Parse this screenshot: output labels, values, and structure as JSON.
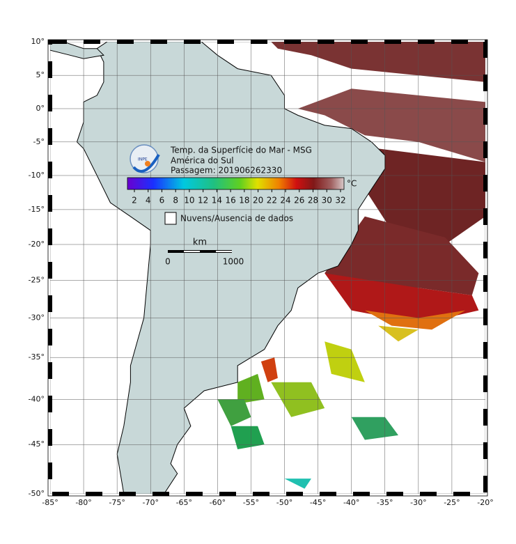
{
  "map": {
    "title_lines": [
      "Temp. da Superfície do Mar - MSG",
      "América do Sul",
      "Passagem: 201906262330"
    ],
    "logo_text": "INPE",
    "colorbar": {
      "unit": "°C",
      "ticks": [
        2,
        4,
        6,
        8,
        10,
        12,
        14,
        16,
        18,
        20,
        22,
        24,
        26,
        28,
        30,
        32
      ]
    },
    "legend": "Nuvens/Ausencia de dados",
    "scale_bar": {
      "unit": "km",
      "labels": [
        0,
        1000
      ]
    },
    "lon_ticks": [
      {
        "value": -85,
        "label": "-85°"
      },
      {
        "value": -80,
        "label": "-80°"
      },
      {
        "value": -75,
        "label": "-75°"
      },
      {
        "value": -70,
        "label": "-70°"
      },
      {
        "value": -65,
        "label": "-65°"
      },
      {
        "value": -60,
        "label": "-60°"
      },
      {
        "value": -55,
        "label": "-55°"
      },
      {
        "value": -50,
        "label": "-50°"
      },
      {
        "value": -45,
        "label": "-45°"
      },
      {
        "value": -40,
        "label": "-40°"
      },
      {
        "value": -35,
        "label": "-35°"
      },
      {
        "value": -30,
        "label": "-30°"
      },
      {
        "value": -25,
        "label": "-25°"
      },
      {
        "value": -20,
        "label": "-20°"
      }
    ],
    "lat_ticks": [
      {
        "value": 10,
        "label": "10°"
      },
      {
        "value": 5,
        "label": "5°"
      },
      {
        "value": 0,
        "label": "0°"
      },
      {
        "value": -5,
        "label": "-5°"
      },
      {
        "value": -10,
        "label": "-10°"
      },
      {
        "value": -15,
        "label": "-15°"
      },
      {
        "value": -20,
        "label": "-20°"
      },
      {
        "value": -25,
        "label": "-25°"
      },
      {
        "value": -30,
        "label": "-30°"
      },
      {
        "value": -35,
        "label": "-35°"
      },
      {
        "value": -40,
        "label": "-40°"
      },
      {
        "value": -45,
        "label": "-45°"
      },
      {
        "value": -50,
        "label": "-50°"
      }
    ]
  }
}
